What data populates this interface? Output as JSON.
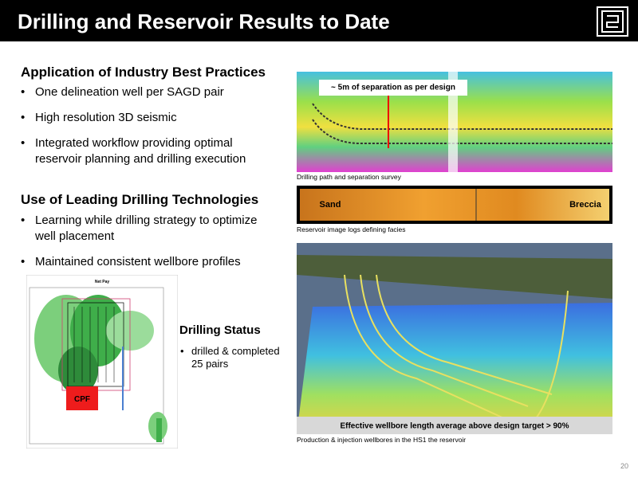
{
  "header": {
    "title": "Drilling and Reservoir Results to Date"
  },
  "sections": [
    {
      "heading": "Application of Industry Best Practices",
      "bullets": [
        "One delineation well per SAGD pair",
        "High resolution 3D seismic",
        "Integrated workflow providing optimal reservoir planning and drilling execution"
      ]
    },
    {
      "heading": "Use of Leading Drilling Technologies",
      "bullets": [
        "Learning while drilling strategy to optimize well placement",
        "Maintained consistent wellbore profiles"
      ]
    }
  ],
  "map": {
    "title": "Net Pay",
    "label": "CPF"
  },
  "drilling_status": {
    "heading": "Drilling Status",
    "bullets": [
      "drilled & completed 25 pairs"
    ]
  },
  "figures": [
    {
      "callout": "~ 5m of separation as per design",
      "caption": "Drilling path and separation survey"
    },
    {
      "labels": [
        "Sand",
        "Breccia"
      ],
      "caption": "Reservoir image logs defining facies"
    },
    {
      "banner": "Effective wellbore length average above design target > 90%",
      "caption": "Production & injection wellbores in the HS1 the reservoir"
    }
  ],
  "page_number": "20"
}
